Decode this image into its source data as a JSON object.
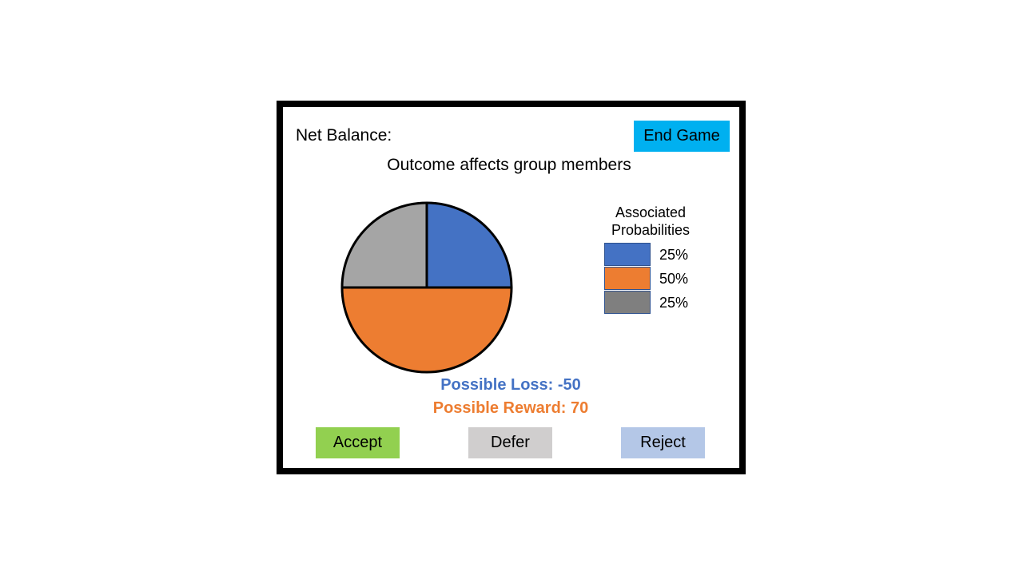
{
  "header": {
    "net_balance_label": "Net Balance:",
    "end_game_label": "End Game"
  },
  "headline": "Outcome affects group members",
  "legend": {
    "title_line1": "Associated",
    "title_line2": "Probabilities"
  },
  "outcomes": {
    "loss_label": "Possible Loss: -50",
    "reward_label": "Possible Reward: 70"
  },
  "actions": {
    "accept_label": "Accept",
    "defer_label": "Defer",
    "reject_label": "Reject"
  },
  "chart_data": {
    "type": "pie",
    "start": "top, clockwise",
    "slices": [
      {
        "legend_label": "25%",
        "value": 25,
        "color": "#4472c4"
      },
      {
        "legend_label": "50%",
        "value": 50,
        "color": "#ed7d31"
      },
      {
        "legend_label": "25%",
        "value": 25,
        "color": "#a5a5a5"
      }
    ],
    "legend_swatch_colors": [
      "#4472c4",
      "#ed7d31",
      "#7f7f7f"
    ]
  },
  "colors": {
    "end_game_bg": "#00b0f0",
    "accept_bg": "#92d050",
    "defer_bg": "#d0cece",
    "reject_bg": "#b4c7e7",
    "loss_text": "#4472c4",
    "reward_text": "#ed7d31"
  }
}
